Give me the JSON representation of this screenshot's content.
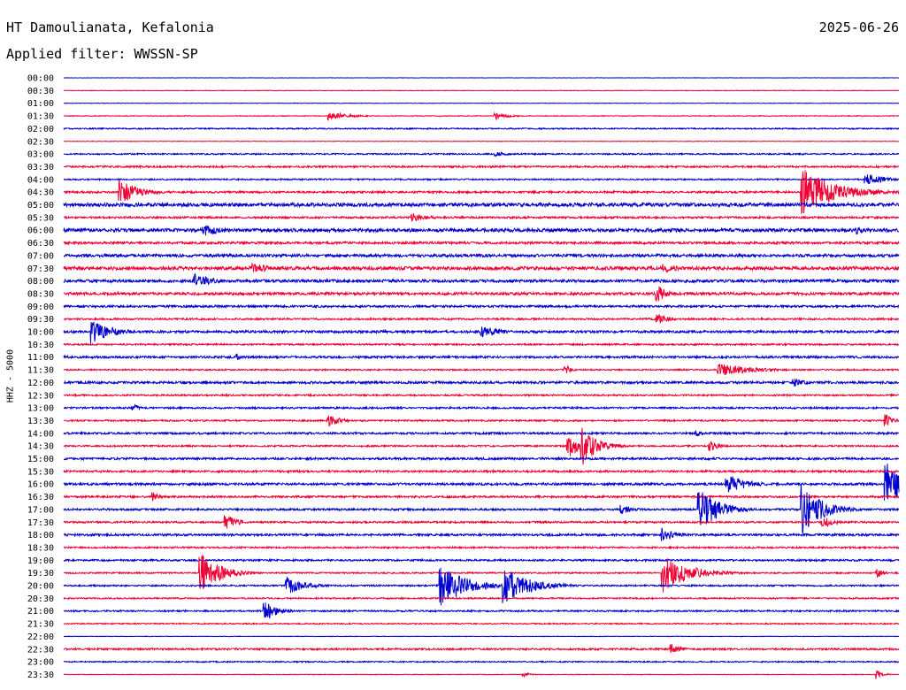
{
  "header": {
    "station": "HT Damoulianata, Kefalonia",
    "date": "2025-06-26",
    "filter": "Applied filter: WWSSN-SP"
  },
  "chart_data": {
    "type": "line",
    "title": "HT Damoulianata, Kefalonia",
    "subtitle": "Applied filter: WWSSN-SP",
    "ylabel": "HHZ - 5000",
    "xlabel": "",
    "grid": false,
    "y_tick_labels": [
      "00:00",
      "00:30",
      "01:00",
      "01:30",
      "02:00",
      "02:30",
      "03:00",
      "03:30",
      "04:00",
      "04:30",
      "05:00",
      "05:30",
      "06:00",
      "06:30",
      "07:00",
      "07:30",
      "08:00",
      "08:30",
      "09:00",
      "09:30",
      "10:00",
      "10:30",
      "11:00",
      "11:30",
      "12:00",
      "12:30",
      "13:00",
      "13:30",
      "14:00",
      "14:30",
      "15:00",
      "15:30",
      "16:00",
      "16:30",
      "17:00",
      "17:30",
      "18:00",
      "18:30",
      "19:00",
      "19:30",
      "20:00",
      "20:30",
      "21:00",
      "21:30",
      "22:00",
      "22:30",
      "23:00",
      "23:30"
    ],
    "line_minutes": 30,
    "colors": [
      "#0000cc",
      "#ee0033"
    ],
    "noise_levels": [
      0.2,
      0.3,
      0.3,
      0.4,
      0.7,
      0.3,
      0.8,
      1.0,
      0.8,
      1.1,
      2.0,
      1.1,
      1.9,
      1.3,
      1.6,
      1.9,
      1.6,
      1.5,
      1.2,
      1.0,
      1.3,
      0.9,
      1.2,
      0.8,
      1.3,
      0.9,
      1.0,
      0.9,
      1.1,
      0.9,
      1.2,
      1.1,
      1.3,
      1.1,
      1.1,
      1.0,
      1.2,
      0.9,
      1.0,
      0.8,
      0.9,
      0.8,
      0.9,
      0.7,
      0.3,
      1.0,
      0.7,
      0.3
    ],
    "events": [
      {
        "line": "01:30",
        "minute": 9.5,
        "amplitude": 5,
        "duration": 1.5
      },
      {
        "line": "01:30",
        "minute": 15.5,
        "amplitude": 4,
        "duration": 1
      },
      {
        "line": "03:00",
        "minute": 15.5,
        "amplitude": 3,
        "duration": 1
      },
      {
        "line": "04:00",
        "minute": 28.8,
        "amplitude": 7,
        "duration": 1.5
      },
      {
        "line": "04:30",
        "minute": 2,
        "amplitude": 14,
        "duration": 1.5
      },
      {
        "line": "04:30",
        "minute": 26.5,
        "amplitude": 28,
        "duration": 2.5
      },
      {
        "line": "05:30",
        "minute": 12.5,
        "amplitude": 5,
        "duration": 1.5
      },
      {
        "line": "06:00",
        "minute": 5,
        "amplitude": 7,
        "duration": 1.5
      },
      {
        "line": "06:00",
        "minute": 28.5,
        "amplitude": 5,
        "duration": 0.5
      },
      {
        "line": "07:30",
        "minute": 6.8,
        "amplitude": 6,
        "duration": 1.5
      },
      {
        "line": "07:30",
        "minute": 21.5,
        "amplitude": 5,
        "duration": 1.5
      },
      {
        "line": "08:00",
        "minute": 4.7,
        "amplitude": 8,
        "duration": 1.5
      },
      {
        "line": "08:30",
        "minute": 21.3,
        "amplitude": 10,
        "duration": 0.8
      },
      {
        "line": "09:30",
        "minute": 21.3,
        "amplitude": 6,
        "duration": 1
      },
      {
        "line": "10:00",
        "minute": 1,
        "amplitude": 14,
        "duration": 1.5
      },
      {
        "line": "10:00",
        "minute": 15,
        "amplitude": 7,
        "duration": 1.5
      },
      {
        "line": "11:00",
        "minute": 6.2,
        "amplitude": 4,
        "duration": 0.5
      },
      {
        "line": "11:30",
        "minute": 18,
        "amplitude": 5,
        "duration": 0.5
      },
      {
        "line": "11:30",
        "minute": 23.5,
        "amplitude": 8,
        "duration": 2.5
      },
      {
        "line": "12:00",
        "minute": 26.2,
        "amplitude": 5,
        "duration": 1
      },
      {
        "line": "13:00",
        "minute": 2.5,
        "amplitude": 4,
        "duration": 0.5
      },
      {
        "line": "13:30",
        "minute": 9.5,
        "amplitude": 7,
        "duration": 1
      },
      {
        "line": "13:30",
        "minute": 29.5,
        "amplitude": 8,
        "duration": 0.5
      },
      {
        "line": "14:00",
        "minute": 22.7,
        "amplitude": 5,
        "duration": 0.5
      },
      {
        "line": "14:30",
        "minute": 18.1,
        "amplitude": 14,
        "duration": 1
      },
      {
        "line": "14:30",
        "minute": 18.6,
        "amplitude": 22,
        "duration": 1.2
      },
      {
        "line": "14:30",
        "minute": 23.2,
        "amplitude": 6,
        "duration": 0.8
      },
      {
        "line": "16:00",
        "minute": 23.8,
        "amplitude": 12,
        "duration": 1.5
      },
      {
        "line": "16:00",
        "minute": 29.5,
        "amplitude": 26,
        "duration": 2
      },
      {
        "line": "16:30",
        "minute": 3.2,
        "amplitude": 5,
        "duration": 0.5
      },
      {
        "line": "17:00",
        "minute": 20,
        "amplitude": 6,
        "duration": 1
      },
      {
        "line": "17:00",
        "minute": 22.8,
        "amplitude": 26,
        "duration": 1.5
      },
      {
        "line": "17:00",
        "minute": 26.5,
        "amplitude": 30,
        "duration": 1.5
      },
      {
        "line": "17:30",
        "minute": 5.8,
        "amplitude": 8,
        "duration": 1
      },
      {
        "line": "17:30",
        "minute": 27.2,
        "amplitude": 7,
        "duration": 1
      },
      {
        "line": "18:00",
        "minute": 21.5,
        "amplitude": 8,
        "duration": 1
      },
      {
        "line": "19:30",
        "minute": 4.9,
        "amplitude": 24,
        "duration": 1.5
      },
      {
        "line": "19:30",
        "minute": 21.5,
        "amplitude": 22,
        "duration": 2
      },
      {
        "line": "19:30",
        "minute": 29.2,
        "amplitude": 6,
        "duration": 0.5
      },
      {
        "line": "20:00",
        "minute": 8,
        "amplitude": 10,
        "duration": 1.5
      },
      {
        "line": "20:00",
        "minute": 13.5,
        "amplitude": 24,
        "duration": 2
      },
      {
        "line": "20:00",
        "minute": 15.8,
        "amplitude": 20,
        "duration": 2
      },
      {
        "line": "21:00",
        "minute": 7.2,
        "amplitude": 11,
        "duration": 1
      },
      {
        "line": "22:30",
        "minute": 21.8,
        "amplitude": 6,
        "duration": 0.8
      },
      {
        "line": "23:30",
        "minute": 16.5,
        "amplitude": 3,
        "duration": 0.5
      },
      {
        "line": "23:30",
        "minute": 29.2,
        "amplitude": 5,
        "duration": 0.5
      }
    ]
  }
}
